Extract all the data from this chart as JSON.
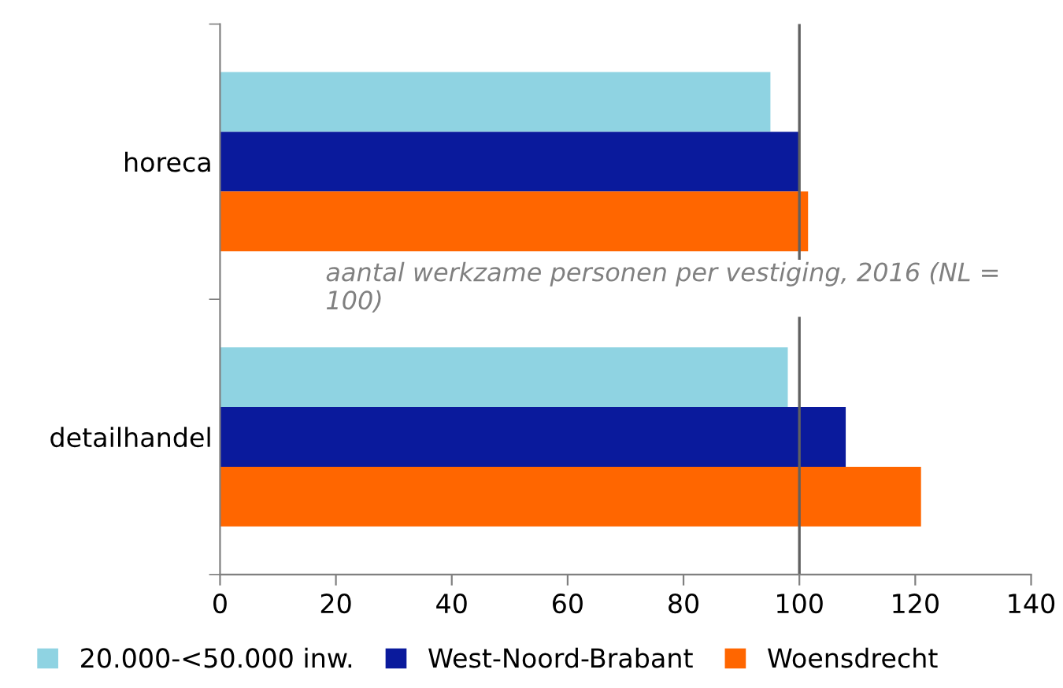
{
  "chart_data": {
    "type": "bar",
    "orientation": "horizontal",
    "categories": [
      "horeca",
      "detailhandel"
    ],
    "series": [
      {
        "name": "20.000-<50.000 inw.",
        "color": "#8fd3e2",
        "values": [
          95,
          98
        ]
      },
      {
        "name": "West-Noord-Brabant",
        "color": "#0a1a9c",
        "values": [
          100,
          108
        ]
      },
      {
        "name": "Woensdrecht",
        "color": "#ff6600",
        "values": [
          101.5,
          121
        ]
      }
    ],
    "xlim": [
      0,
      140
    ],
    "xticks": [
      0,
      20,
      40,
      60,
      80,
      100,
      120,
      140
    ],
    "ref_lines": [
      {
        "axis": "x",
        "value": 100,
        "color": "#606060"
      }
    ],
    "annotations": [
      "aantal werkzame personen per vestiging, 2016 (NL = 100)"
    ],
    "legend": "bottom",
    "grid": false
  }
}
